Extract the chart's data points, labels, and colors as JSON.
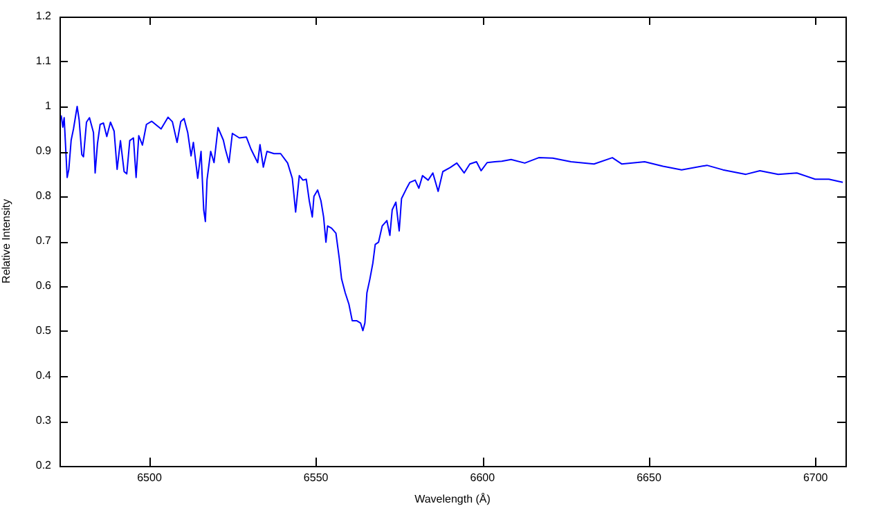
{
  "chart_data": {
    "type": "line",
    "xlabel": "Wavelength (Å)",
    "ylabel": "Relative Intensity",
    "xlim": [
      6473,
      6709
    ],
    "xticks": [
      6500,
      6550,
      6600,
      6650,
      6700
    ],
    "ylim": [
      0.2,
      1.2
    ],
    "yticks": [
      0.2,
      0.3,
      0.4,
      0.5,
      0.6,
      0.7,
      0.8,
      0.9,
      1,
      1.1,
      1.2
    ],
    "grid": false,
    "legend": false,
    "marker": "none",
    "line_style": "solid",
    "series": [
      {
        "color": "#0000ff",
        "x": [
          6473.5,
          6474.0,
          6474.4,
          6475.3,
          6475.8,
          6476.5,
          6477.2,
          6478.3,
          6478.9,
          6479.7,
          6480.2,
          6481.1,
          6482.0,
          6483.2,
          6483.7,
          6484.4,
          6485.2,
          6486.2,
          6487.2,
          6488.3,
          6489.4,
          6490.3,
          6491.3,
          6492.4,
          6493.2,
          6494.1,
          6495.2,
          6496.0,
          6496.8,
          6497.9,
          6499.1,
          6500.7,
          6503.5,
          6505.6,
          6506.9,
          6508.3,
          6509.4,
          6510.4,
          6511.5,
          6512.5,
          6513.2,
          6514.5,
          6515.5,
          6516.3,
          6516.8,
          6517.3,
          6518.4,
          6519.4,
          6520.6,
          6522.2,
          6522.8,
          6523.9,
          6524.9,
          6527.0,
          6529.1,
          6530.5,
          6532.5,
          6533.2,
          6534.2,
          6535.3,
          6537.4,
          6539.4,
          6541.5,
          6542.9,
          6543.9,
          6545.0,
          6546.1,
          6547.1,
          6548.0,
          6548.9,
          6549.4,
          6550.5,
          6551.5,
          6552.3,
          6553.0,
          6553.5,
          6554.7,
          6556.0,
          6557.0,
          6557.7,
          6558.8,
          6559.9,
          6560.9,
          6562.3,
          6563.4,
          6564.1,
          6564.7,
          6565.3,
          6566.2,
          6567.1,
          6567.8,
          6568.8,
          6569.9,
          6571.3,
          6572.2,
          6572.9,
          6574.0,
          6575.0,
          6575.7,
          6577.1,
          6578.2,
          6579.8,
          6580.9,
          6582.0,
          6583.7,
          6585.1,
          6586.7,
          6588.1,
          6590.3,
          6592.3,
          6594.5,
          6596.2,
          6598.2,
          6599.6,
          6601.4,
          6603.7,
          6605.8,
          6608.6,
          6612.7,
          6616.9,
          6621.1,
          6626.6,
          6633.5,
          6639.0,
          6641.8,
          6648.7,
          6654.2,
          6659.8,
          6667.4,
          6672.2,
          6679.1,
          6683.3,
          6688.8,
          6694.4,
          6699.9,
          6704.0,
          6708.2
        ],
        "values": [
          0.98,
          0.954,
          0.975,
          0.842,
          0.86,
          0.925,
          0.95,
          1.0,
          0.97,
          0.893,
          0.888,
          0.965,
          0.975,
          0.942,
          0.852,
          0.917,
          0.96,
          0.963,
          0.933,
          0.965,
          0.945,
          0.86,
          0.924,
          0.855,
          0.85,
          0.924,
          0.93,
          0.842,
          0.935,
          0.914,
          0.96,
          0.967,
          0.95,
          0.976,
          0.966,
          0.92,
          0.966,
          0.973,
          0.942,
          0.89,
          0.92,
          0.84,
          0.9,
          0.77,
          0.744,
          0.837,
          0.9,
          0.875,
          0.953,
          0.925,
          0.905,
          0.875,
          0.94,
          0.93,
          0.932,
          0.905,
          0.875,
          0.915,
          0.865,
          0.9,
          0.895,
          0.895,
          0.874,
          0.84,
          0.765,
          0.846,
          0.836,
          0.838,
          0.79,
          0.754,
          0.8,
          0.814,
          0.79,
          0.754,
          0.698,
          0.734,
          0.729,
          0.718,
          0.662,
          0.616,
          0.585,
          0.56,
          0.523,
          0.523,
          0.518,
          0.501,
          0.518,
          0.585,
          0.616,
          0.652,
          0.693,
          0.698,
          0.734,
          0.746,
          0.713,
          0.77,
          0.787,
          0.723,
          0.795,
          0.816,
          0.831,
          0.836,
          0.818,
          0.846,
          0.836,
          0.852,
          0.811,
          0.855,
          0.864,
          0.874,
          0.852,
          0.872,
          0.877,
          0.857,
          0.875,
          0.877,
          0.878,
          0.882,
          0.874,
          0.886,
          0.885,
          0.877,
          0.872,
          0.886,
          0.872,
          0.877,
          0.867,
          0.859,
          0.869,
          0.859,
          0.849,
          0.857,
          0.849,
          0.852,
          0.838,
          0.838,
          0.831
        ]
      }
    ]
  }
}
